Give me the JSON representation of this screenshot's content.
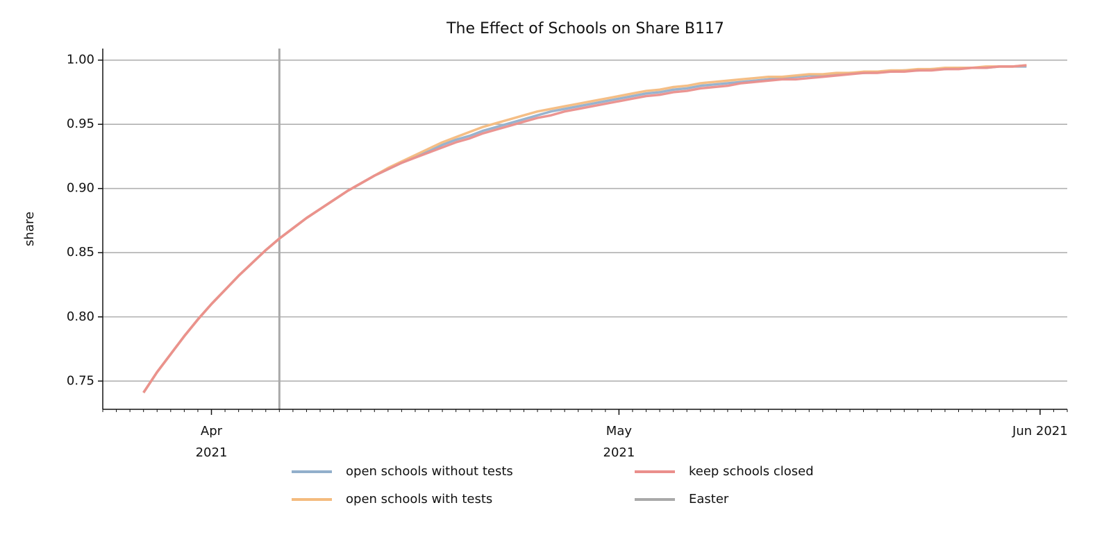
{
  "chart_data": {
    "type": "line",
    "title": "The Effect of Schools on Share B117",
    "ylabel": "share",
    "x": [
      "2021-03-27",
      "2021-03-28",
      "2021-03-29",
      "2021-03-30",
      "2021-03-31",
      "2021-04-01",
      "2021-04-02",
      "2021-04-03",
      "2021-04-04",
      "2021-04-05",
      "2021-04-06",
      "2021-04-07",
      "2021-04-08",
      "2021-04-09",
      "2021-04-10",
      "2021-04-11",
      "2021-04-12",
      "2021-04-13",
      "2021-04-14",
      "2021-04-15",
      "2021-04-16",
      "2021-04-17",
      "2021-04-18",
      "2021-04-19",
      "2021-04-20",
      "2021-04-21",
      "2021-04-22",
      "2021-04-23",
      "2021-04-24",
      "2021-04-25",
      "2021-04-26",
      "2021-04-27",
      "2021-04-28",
      "2021-04-29",
      "2021-04-30",
      "2021-05-01",
      "2021-05-02",
      "2021-05-03",
      "2021-05-04",
      "2021-05-05",
      "2021-05-06",
      "2021-05-07",
      "2021-05-08",
      "2021-05-09",
      "2021-05-10",
      "2021-05-11",
      "2021-05-12",
      "2021-05-13",
      "2021-05-14",
      "2021-05-15",
      "2021-05-16",
      "2021-05-17",
      "2021-05-18",
      "2021-05-19",
      "2021-05-20",
      "2021-05-21",
      "2021-05-22",
      "2021-05-23",
      "2021-05-24",
      "2021-05-25",
      "2021-05-26",
      "2021-05-27",
      "2021-05-28",
      "2021-05-29",
      "2021-05-30",
      "2021-05-31"
    ],
    "series": [
      {
        "name": "open schools without tests",
        "color": "#92afcb",
        "values": [
          0.741,
          0.757,
          0.771,
          0.785,
          0.798,
          0.81,
          0.821,
          0.832,
          0.842,
          0.852,
          0.861,
          0.869,
          0.877,
          0.884,
          0.891,
          0.898,
          0.904,
          0.91,
          0.915,
          0.92,
          0.925,
          0.929,
          0.934,
          0.938,
          0.941,
          0.945,
          0.948,
          0.951,
          0.954,
          0.957,
          0.96,
          0.962,
          0.964,
          0.966,
          0.968,
          0.97,
          0.972,
          0.974,
          0.975,
          0.977,
          0.978,
          0.98,
          0.981,
          0.982,
          0.983,
          0.984,
          0.985,
          0.986,
          0.987,
          0.988,
          0.988,
          0.989,
          0.99,
          0.99,
          0.991,
          0.991,
          0.992,
          0.992,
          0.993,
          0.993,
          0.994,
          0.994,
          0.994,
          0.995,
          0.995,
          0.995
        ]
      },
      {
        "name": "open schools with tests",
        "color": "#f4bb7e",
        "values": [
          0.741,
          0.757,
          0.771,
          0.785,
          0.798,
          0.81,
          0.821,
          0.832,
          0.842,
          0.852,
          0.861,
          0.869,
          0.877,
          0.884,
          0.891,
          0.898,
          0.904,
          0.91,
          0.916,
          0.921,
          0.926,
          0.931,
          0.936,
          0.94,
          0.944,
          0.948,
          0.951,
          0.954,
          0.957,
          0.96,
          0.962,
          0.964,
          0.966,
          0.968,
          0.97,
          0.972,
          0.974,
          0.976,
          0.977,
          0.979,
          0.98,
          0.982,
          0.983,
          0.984,
          0.985,
          0.986,
          0.987,
          0.987,
          0.988,
          0.989,
          0.989,
          0.99,
          0.99,
          0.991,
          0.991,
          0.992,
          0.992,
          0.993,
          0.993,
          0.994,
          0.994,
          0.994,
          0.995,
          0.995,
          0.995,
          0.996
        ]
      },
      {
        "name": "keep schools closed",
        "color": "#ea8f8c",
        "values": [
          0.741,
          0.757,
          0.771,
          0.785,
          0.798,
          0.81,
          0.821,
          0.832,
          0.842,
          0.852,
          0.861,
          0.869,
          0.877,
          0.884,
          0.891,
          0.898,
          0.904,
          0.91,
          0.915,
          0.92,
          0.924,
          0.928,
          0.932,
          0.936,
          0.939,
          0.943,
          0.946,
          0.949,
          0.952,
          0.955,
          0.957,
          0.96,
          0.962,
          0.964,
          0.966,
          0.968,
          0.97,
          0.972,
          0.973,
          0.975,
          0.976,
          0.978,
          0.979,
          0.98,
          0.982,
          0.983,
          0.984,
          0.985,
          0.985,
          0.986,
          0.987,
          0.988,
          0.989,
          0.99,
          0.99,
          0.991,
          0.991,
          0.992,
          0.992,
          0.993,
          0.993,
          0.994,
          0.994,
          0.995,
          0.995,
          0.996
        ]
      }
    ],
    "vlines": [
      {
        "name": "Easter",
        "color": "#a9a9a9",
        "x": "2021-04-06"
      }
    ],
    "xlim": [
      "2021-03-24",
      "2021-06-03"
    ],
    "xticks": [
      {
        "value": "2021-04-01",
        "label": "Apr 2021"
      },
      {
        "value": "2021-05-01",
        "label": "May 2021"
      },
      {
        "value": "2021-06-01",
        "label": "Jun 2021"
      }
    ],
    "x_minor_ticks": "daily",
    "ylim": [
      0.728,
      1.009
    ],
    "yticks": [
      0.75,
      {
        "value": 0.8,
        "label": "0.80"
      },
      0.85,
      {
        "value": 0.9,
        "label": "0.90"
      },
      0.95,
      {
        "value": 1,
        "label": "1.00"
      }
    ],
    "grid": "y",
    "legend": "bottom"
  }
}
